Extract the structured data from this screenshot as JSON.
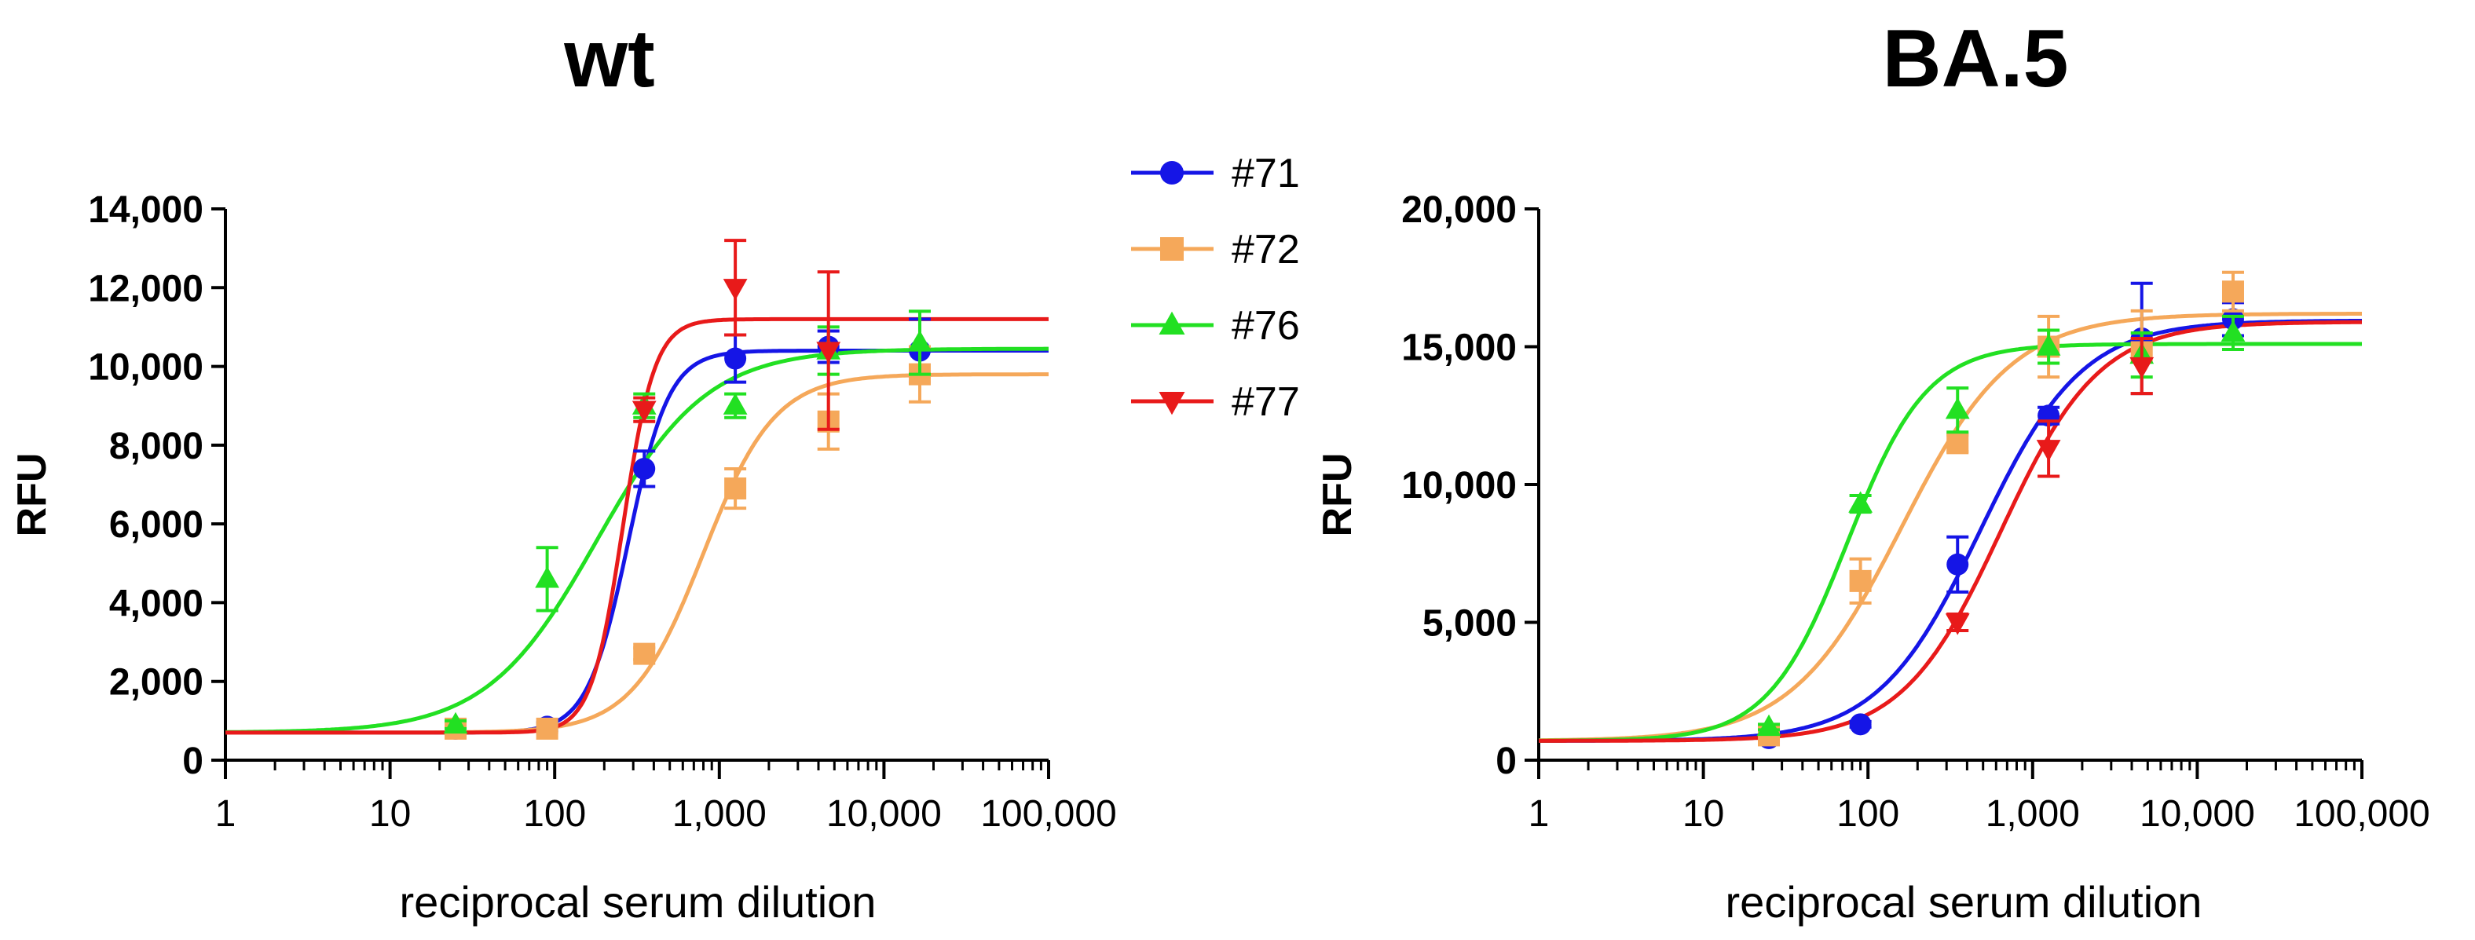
{
  "chart_data": [
    {
      "type": "scatter",
      "title": "wt",
      "xlabel": "reciprocal serum dilution",
      "ylabel": "RFU",
      "xscale": "log",
      "xlim": [
        1,
        100000
      ],
      "ylim": [
        0,
        14000
      ],
      "x_ticks": [
        1,
        10,
        100,
        1000,
        10000,
        100000
      ],
      "x_tick_labels": [
        "1",
        "10",
        "100",
        "1,000",
        "10,000",
        "100,000"
      ],
      "y_ticks": [
        0,
        2000,
        4000,
        6000,
        8000,
        10000,
        12000,
        14000
      ],
      "y_tick_labels": [
        "0",
        "2,000",
        "4,000",
        "6,000",
        "8,000",
        "10,000",
        "12,000",
        "14,000"
      ],
      "grid": false,
      "legend": "right",
      "series": [
        {
          "name": "#71",
          "color": "#1515e6",
          "marker": "circle",
          "x": [
            25,
            90,
            350,
            1250,
            4600,
            16500
          ],
          "y": [
            800,
            850,
            7400,
            10200,
            10500,
            10400
          ],
          "err": [
            100,
            100,
            450,
            600,
            400,
            800
          ],
          "fit": {
            "bottom": 700,
            "top": 10400,
            "ec50": 280,
            "hill": 3.5
          }
        },
        {
          "name": "#72",
          "color": "#f5a85a",
          "marker": "square",
          "x": [
            25,
            90,
            350,
            1250,
            4600,
            16500
          ],
          "y": [
            800,
            800,
            2700,
            6900,
            8600,
            9800
          ],
          "err": [
            100,
            100,
            150,
            500,
            700,
            700
          ],
          "fit": {
            "bottom": 700,
            "top": 9800,
            "ec50": 800,
            "hill": 2.0
          }
        },
        {
          "name": "#76",
          "color": "#22e022",
          "marker": "triangle-up",
          "x": [
            25,
            90,
            350,
            1250,
            4600,
            16500
          ],
          "y": [
            900,
            4600,
            9000,
            9000,
            10400,
            10600
          ],
          "err": [
            100,
            800,
            300,
            300,
            600,
            800
          ],
          "fit": {
            "bottom": 700,
            "top": 10450,
            "ec50": 180,
            "hill": 1.3
          }
        },
        {
          "name": "#77",
          "color": "#e81a1a",
          "marker": "triangle-down",
          "x": [
            350,
            1250,
            4600
          ],
          "y": [
            8900,
            12000,
            10400
          ],
          "err": [
            300,
            1200,
            2000
          ],
          "fit": {
            "bottom": 700,
            "top": 11200,
            "ec50": 260,
            "hill": 4.5
          }
        }
      ]
    },
    {
      "type": "scatter",
      "title": "BA.5",
      "xlabel": "reciprocal serum dilution",
      "ylabel": "RFU",
      "xscale": "log",
      "xlim": [
        1,
        100000
      ],
      "ylim": [
        0,
        20000
      ],
      "x_ticks": [
        1,
        10,
        100,
        1000,
        10000,
        100000
      ],
      "x_tick_labels": [
        "1",
        "10",
        "100",
        "1,000",
        "10,000",
        "100,000"
      ],
      "y_ticks": [
        0,
        5000,
        10000,
        15000,
        20000
      ],
      "y_tick_labels": [
        "0",
        "5,000",
        "10,000",
        "15,000",
        "20,000"
      ],
      "grid": false,
      "series": [
        {
          "name": "#71",
          "color": "#1515e6",
          "marker": "circle",
          "x": [
            25,
            90,
            350,
            1250,
            4600,
            16500
          ],
          "y": [
            800,
            1300,
            7100,
            12500,
            15300,
            16000
          ],
          "err": [
            100,
            100,
            1000,
            300,
            2000,
            600
          ],
          "fit": {
            "bottom": 700,
            "top": 15950,
            "ec50": 480,
            "hill": 1.4
          }
        },
        {
          "name": "#72",
          "color": "#f5a85a",
          "marker": "square",
          "x": [
            25,
            90,
            350,
            1250,
            4600,
            16500
          ],
          "y": [
            900,
            6500,
            11500,
            15000,
            14800,
            17000
          ],
          "err": [
            100,
            800,
            300,
            1100,
            1500,
            700
          ],
          "fit": {
            "bottom": 700,
            "top": 16200,
            "ec50": 160,
            "hill": 1.3
          }
        },
        {
          "name": "#76",
          "color": "#22e022",
          "marker": "triangle-up",
          "x": [
            25,
            90,
            350,
            1250,
            4600,
            16500
          ],
          "y": [
            1200,
            9300,
            12700,
            15000,
            14700,
            15500
          ],
          "err": [
            100,
            300,
            800,
            600,
            800,
            600
          ],
          "fit": {
            "bottom": 700,
            "top": 15100,
            "ec50": 75,
            "hill": 1.8
          }
        },
        {
          "name": "#77",
          "color": "#e81a1a",
          "marker": "triangle-down",
          "x": [
            350,
            1250,
            4600
          ],
          "y": [
            5000,
            11300,
            14300
          ],
          "err": [
            300,
            1000,
            1000
          ],
          "fit": {
            "bottom": 700,
            "top": 15900,
            "ec50": 640,
            "hill": 1.45
          }
        }
      ]
    }
  ]
}
